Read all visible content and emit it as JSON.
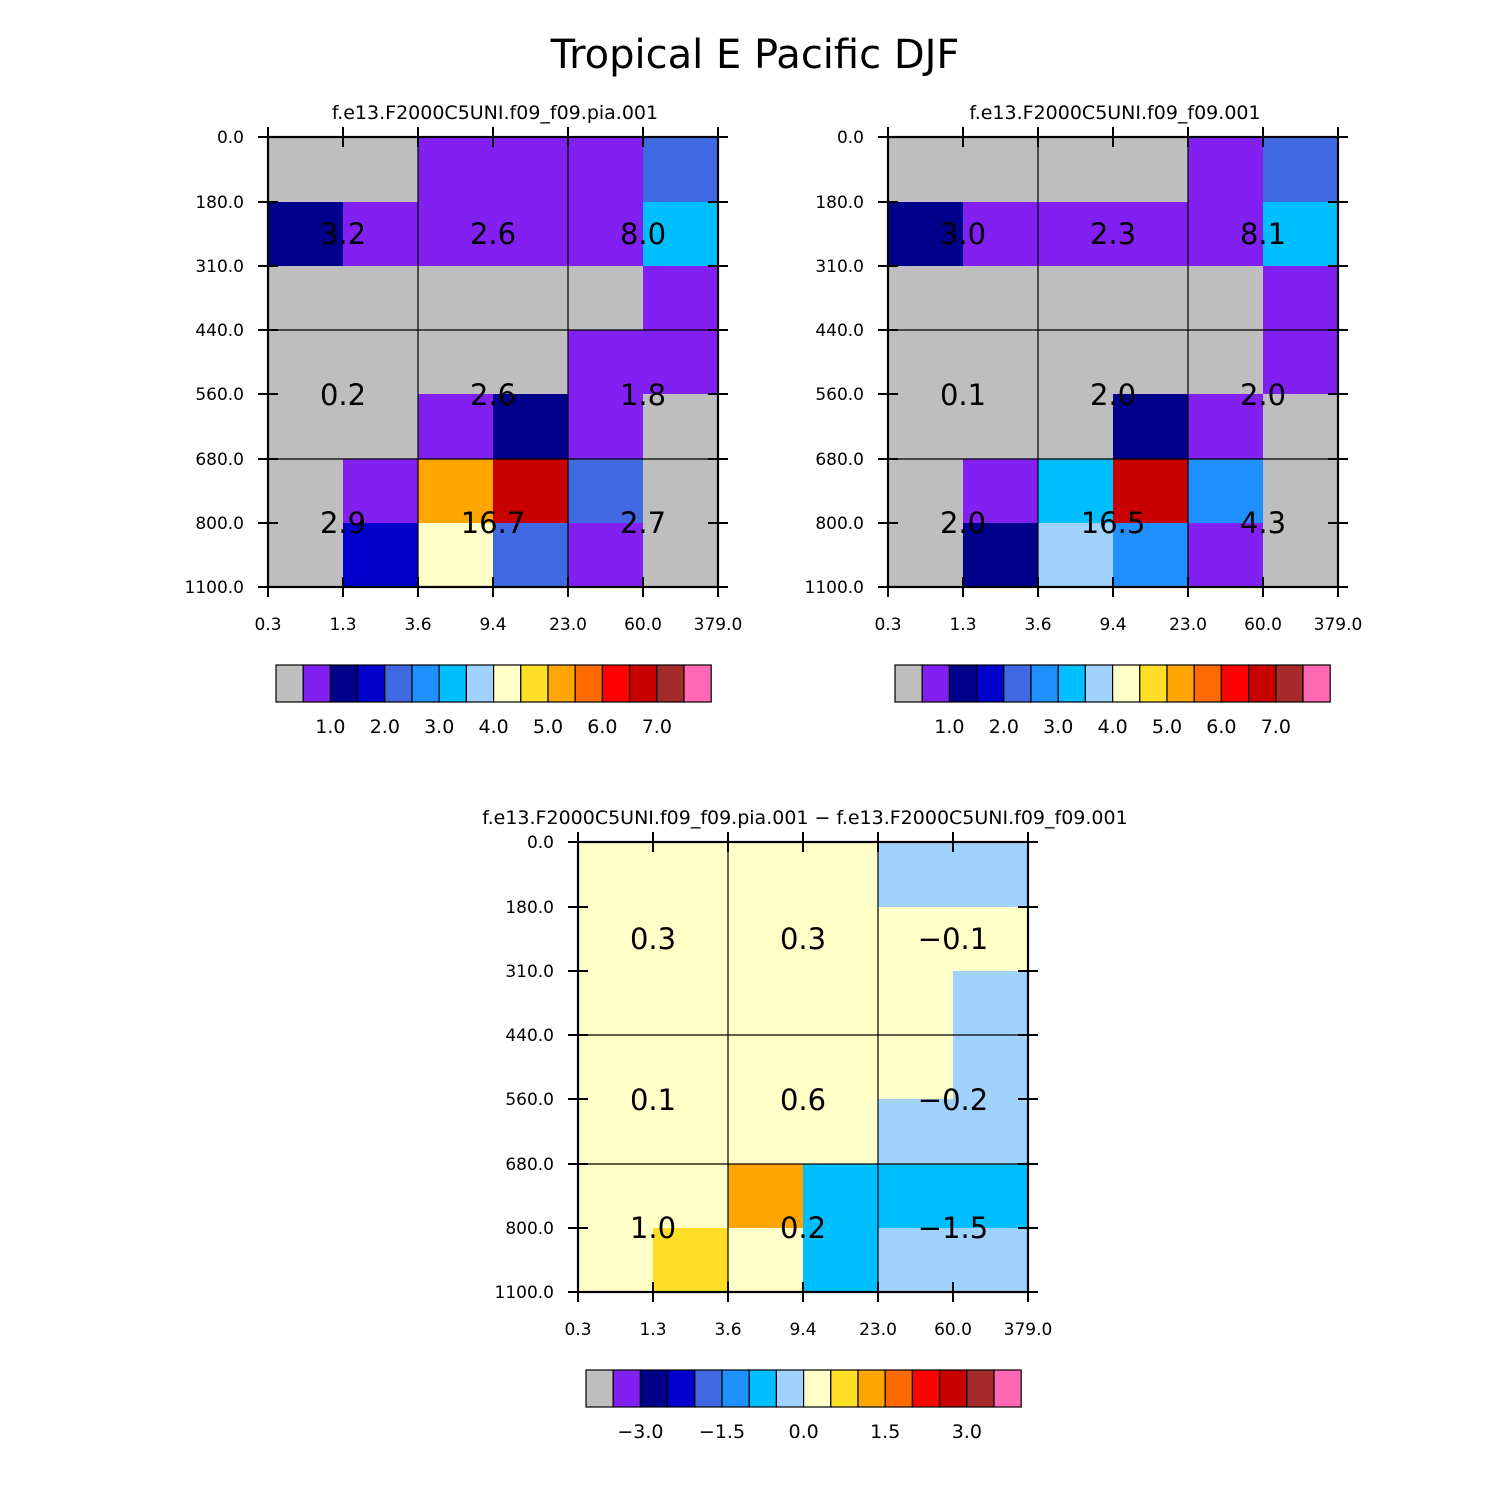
{
  "figure": {
    "title": "Tropical E Pacific DJF"
  },
  "chart_data": [
    {
      "type": "heatmap",
      "title": "f.e13.F2000C5UNI.f09_f09.pia.001",
      "x_tick_labels": [
        "0.3",
        "1.3",
        "3.6",
        "9.4",
        "23.0",
        "60.0",
        "379.0"
      ],
      "y_tick_labels": [
        "0.0",
        "180.0",
        "310.0",
        "440.0",
        "560.0",
        "680.0",
        "800.0",
        "1100.0"
      ],
      "cell_color_index": [
        [
          0,
          0,
          1,
          1,
          1,
          4
        ],
        [
          2,
          1,
          1,
          1,
          1,
          6
        ],
        [
          0,
          0,
          0,
          0,
          0,
          1
        ],
        [
          0,
          0,
          0,
          0,
          1,
          1
        ],
        [
          0,
          0,
          1,
          2,
          1,
          0
        ],
        [
          0,
          1,
          10,
          13,
          4,
          0
        ],
        [
          0,
          3,
          8,
          4,
          1,
          0
        ]
      ],
      "box_labels": [
        [
          "3.2",
          "2.6",
          "8.0"
        ],
        [
          "0.2",
          "2.6",
          "1.8"
        ],
        [
          "2.9",
          "16.7",
          "2.7"
        ]
      ],
      "colorbar": {
        "colors": [
          "#bebebe",
          "#8120f0",
          "#00008b",
          "#0000cd",
          "#4169e1",
          "#1e90ff",
          "#00bfff",
          "#a0d2ff",
          "#ffffc8",
          "#ffdf26",
          "#ffa500",
          "#ff6a00",
          "#ff0000",
          "#c80000",
          "#a52a2a",
          "#ff69b4"
        ],
        "labels": [
          "1.0",
          "2.0",
          "3.0",
          "4.0",
          "5.0",
          "6.0",
          "7.0"
        ],
        "label_after_box": [
          1,
          3,
          5,
          7,
          9,
          11,
          13
        ]
      }
    },
    {
      "type": "heatmap",
      "title": "f.e13.F2000C5UNI.f09_f09.001",
      "x_tick_labels": [
        "0.3",
        "1.3",
        "3.6",
        "9.4",
        "23.0",
        "60.0",
        "379.0"
      ],
      "y_tick_labels": [
        "0.0",
        "180.0",
        "310.0",
        "440.0",
        "560.0",
        "680.0",
        "800.0",
        "1100.0"
      ],
      "cell_color_index": [
        [
          0,
          0,
          0,
          0,
          1,
          4
        ],
        [
          2,
          1,
          1,
          1,
          1,
          6
        ],
        [
          0,
          0,
          0,
          0,
          0,
          1
        ],
        [
          0,
          0,
          0,
          0,
          0,
          1
        ],
        [
          0,
          0,
          0,
          2,
          1,
          0
        ],
        [
          0,
          1,
          6,
          13,
          5,
          0
        ],
        [
          0,
          2,
          7,
          5,
          1,
          0
        ]
      ],
      "box_labels": [
        [
          "3.0",
          "2.3",
          "8.1"
        ],
        [
          "0.1",
          "2.0",
          "2.0"
        ],
        [
          "2.0",
          "16.5",
          "4.3"
        ]
      ],
      "colorbar": {
        "colors": [
          "#bebebe",
          "#8120f0",
          "#00008b",
          "#0000cd",
          "#4169e1",
          "#1e90ff",
          "#00bfff",
          "#a0d2ff",
          "#ffffc8",
          "#ffdf26",
          "#ffa500",
          "#ff6a00",
          "#ff0000",
          "#c80000",
          "#a52a2a",
          "#ff69b4"
        ],
        "labels": [
          "1.0",
          "2.0",
          "3.0",
          "4.0",
          "5.0",
          "6.0",
          "7.0"
        ],
        "label_after_box": [
          1,
          3,
          5,
          7,
          9,
          11,
          13
        ]
      }
    },
    {
      "type": "heatmap",
      "title": "f.e13.F2000C5UNI.f09_f09.pia.001 − f.e13.F2000C5UNI.f09_f09.001",
      "x_tick_labels": [
        "0.3",
        "1.3",
        "3.6",
        "9.4",
        "23.0",
        "60.0",
        "379.0"
      ],
      "y_tick_labels": [
        "0.0",
        "180.0",
        "310.0",
        "440.0",
        "560.0",
        "680.0",
        "800.0",
        "1100.0"
      ],
      "cell_color_index": [
        [
          8,
          8,
          8,
          8,
          7,
          7
        ],
        [
          8,
          8,
          8,
          8,
          8,
          8
        ],
        [
          8,
          8,
          8,
          8,
          8,
          7
        ],
        [
          8,
          8,
          8,
          8,
          8,
          7
        ],
        [
          8,
          8,
          8,
          8,
          7,
          7
        ],
        [
          8,
          8,
          10,
          6,
          6,
          6
        ],
        [
          8,
          9,
          8,
          6,
          7,
          7
        ]
      ],
      "box_labels": [
        [
          "0.3",
          "0.3",
          "−0.1"
        ],
        [
          "0.1",
          "0.6",
          "−0.2"
        ],
        [
          "1.0",
          "0.2",
          "−1.5"
        ]
      ],
      "colorbar": {
        "colors": [
          "#bebebe",
          "#8120f0",
          "#00008b",
          "#0000cd",
          "#4169e1",
          "#1e90ff",
          "#00bfff",
          "#a0d2ff",
          "#ffffc8",
          "#ffdf26",
          "#ffa500",
          "#ff6a00",
          "#ff0000",
          "#c80000",
          "#a52a2a",
          "#ff69b4"
        ],
        "labels": [
          "−3.0",
          "−1.5",
          "0.0",
          "1.5",
          "3.0"
        ],
        "label_after_box": [
          1,
          4,
          7,
          10,
          13
        ]
      }
    }
  ]
}
